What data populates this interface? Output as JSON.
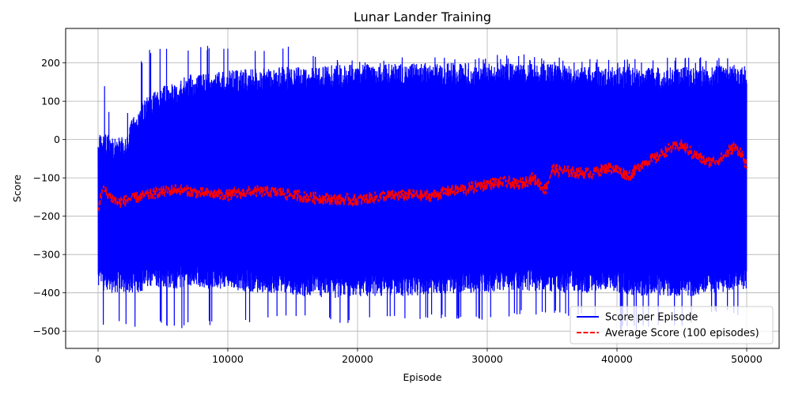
{
  "chart_data": {
    "type": "line",
    "title": "Lunar Lander Training",
    "xlabel": "Episode",
    "ylabel": "Score",
    "xlim": [
      -2500,
      52500
    ],
    "ylim": [
      -545,
      290
    ],
    "xticks": [
      0,
      10000,
      20000,
      30000,
      40000,
      50000
    ],
    "xtick_labels": [
      "0",
      "10000",
      "20000",
      "30000",
      "40000",
      "50000"
    ],
    "yticks": [
      -500,
      -400,
      -300,
      -200,
      -100,
      0,
      100,
      200
    ],
    "ytick_labels": [
      "−500",
      "−400",
      "−300",
      "−200",
      "−100",
      "0",
      "100",
      "200"
    ],
    "grid": true,
    "legend_position": "lower-right",
    "series": [
      {
        "name": "Score per Episode",
        "color": "#0000ff",
        "style": "solid",
        "x": [
          0,
          1000,
          2000,
          3000,
          4000,
          5000,
          6000,
          7000,
          8000,
          9000,
          10000,
          12000,
          14000,
          16000,
          18000,
          20000,
          22000,
          24000,
          26000,
          28000,
          30000,
          32000,
          34000,
          36000,
          38000,
          40000,
          42000,
          44000,
          46000,
          48000,
          50000
        ],
        "y_max": [
          255,
          40,
          35,
          195,
          240,
          245,
          245,
          245,
          245,
          245,
          240,
          240,
          245,
          240,
          210,
          215,
          215,
          220,
          220,
          220,
          220,
          225,
          220,
          215,
          215,
          210,
          215,
          215,
          215,
          215,
          210
        ],
        "y_min": [
          -485,
          -490,
          -480,
          -500,
          -490,
          -480,
          -500,
          -490,
          -490,
          -485,
          -470,
          -490,
          -460,
          -470,
          -480,
          -480,
          -470,
          -475,
          -470,
          -470,
          -470,
          -460,
          -460,
          -460,
          -460,
          -500,
          -500,
          -490,
          -490,
          -450,
          -470
        ],
        "y_typ_high": [
          20,
          10,
          10,
          80,
          120,
          140,
          150,
          170,
          170,
          175,
          180,
          185,
          190,
          190,
          195,
          195,
          200,
          200,
          200,
          200,
          200,
          200,
          200,
          195,
          190,
          190,
          190,
          190,
          190,
          195,
          195
        ],
        "y_typ_low": [
          -390,
          -400,
          -400,
          -400,
          -390,
          -385,
          -390,
          -385,
          -390,
          -390,
          -390,
          -400,
          -400,
          -410,
          -415,
          -410,
          -410,
          -410,
          -405,
          -400,
          -400,
          -395,
          -395,
          -400,
          -400,
          -400,
          -410,
          -410,
          -410,
          -400,
          -390
        ]
      },
      {
        "name": "Average Score (100 episodes)",
        "color": "#ff0000",
        "style": "dashed",
        "x": [
          0,
          300,
          700,
          1500,
          2500,
          3500,
          4500,
          6000,
          8000,
          10000,
          12000,
          14000,
          16000,
          18000,
          20000,
          22000,
          24000,
          25500,
          27000,
          28500,
          30000,
          31500,
          32500,
          33500,
          34500,
          35000,
          36500,
          38000,
          39500,
          41000,
          42000,
          43000,
          44000,
          45000,
          46000,
          47000,
          48000,
          49000,
          49500,
          50000
        ],
        "y": [
          -185,
          -130,
          -140,
          -165,
          -155,
          -148,
          -140,
          -130,
          -140,
          -145,
          -135,
          -138,
          -150,
          -155,
          -158,
          -148,
          -145,
          -148,
          -135,
          -128,
          -115,
          -112,
          -118,
          -100,
          -130,
          -78,
          -85,
          -88,
          -72,
          -95,
          -60,
          -48,
          -25,
          -15,
          -40,
          -60,
          -50,
          -20,
          -30,
          -70
        ]
      }
    ]
  }
}
